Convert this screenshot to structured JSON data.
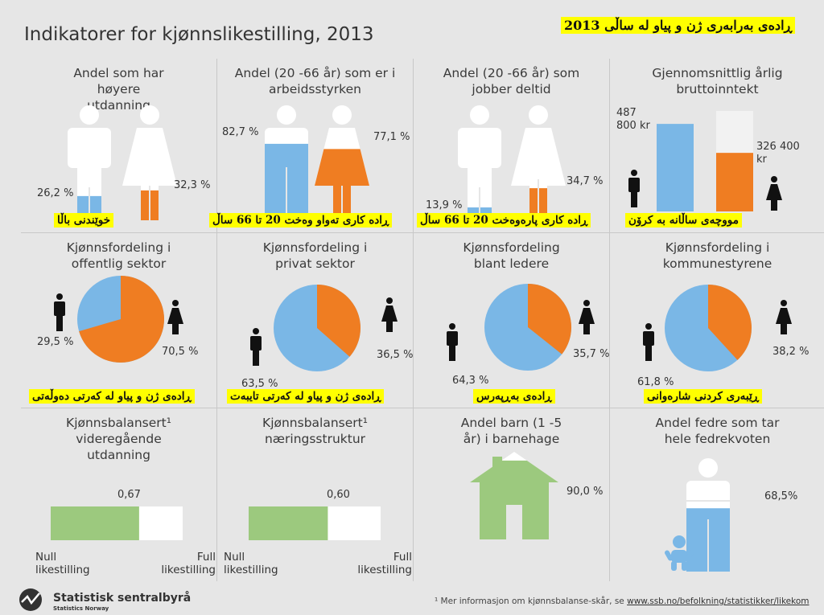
{
  "title": "Indikatorer for kjønnslikestilling, 2013",
  "banner": "ڕادەی بەرابەری ژن و پیاو لە ساڵی 2013",
  "colors": {
    "blue": "#7ab7e6",
    "orange": "#ef7d22",
    "green": "#9cc97e",
    "white": "#ffffff",
    "text": "#333333",
    "background": "#e6e6e6",
    "highlight": "#ffff00"
  },
  "chart_data": [
    {
      "type": "pictogram",
      "title": "Andel som har høyere utdanning",
      "translation": "خوێندنی باڵا",
      "series": [
        {
          "name": "menn",
          "value": 26.2,
          "label": "26,2 %"
        },
        {
          "name": "kvinner",
          "value": 32.3,
          "label": "32,3 %"
        }
      ]
    },
    {
      "type": "pictogram",
      "title": "Andel (20 -66 år) som er i arbeidsstyrken",
      "translation": "ڕادە کاری تەواو وەخت 20 تا 66 ساڵ",
      "series": [
        {
          "name": "menn",
          "value": 82.7,
          "label": "82,7 %"
        },
        {
          "name": "kvinner",
          "value": 77.1,
          "label": "77,1 %"
        }
      ]
    },
    {
      "type": "pictogram",
      "title": "Andel (20 -66 år) som jobber deltid",
      "translation": "ڕادە کاری پارەوەخت 20 تا 66 ساڵ",
      "series": [
        {
          "name": "menn",
          "value": 13.9,
          "label": "13,9 %"
        },
        {
          "name": "kvinner",
          "value": 34.7,
          "label": "34,7 %"
        }
      ]
    },
    {
      "type": "bar",
      "title": "Gjennomsnittlig årlig bruttoinntekt",
      "translation": "مووچەی ساڵانە بە کرۆن",
      "series": [
        {
          "name": "menn",
          "value": 487800,
          "label": "487 800 kr"
        },
        {
          "name": "kvinner",
          "value": 326400,
          "label": "326 400 kr"
        }
      ]
    },
    {
      "type": "pie",
      "title": "Kjønnsfordeling i offentlig sektor",
      "translation": "ڕادەی ژن و پیاو لە کەرتی دەوڵەتی",
      "series": [
        {
          "name": "menn",
          "value": 29.5,
          "label": "29,5 %"
        },
        {
          "name": "kvinner",
          "value": 70.5,
          "label": "70,5 %"
        }
      ]
    },
    {
      "type": "pie",
      "title": "Kjønnsfordeling i privat sektor",
      "translation": "ڕادەی ژن و پیاو لە کەرتی تایبەت",
      "series": [
        {
          "name": "menn",
          "value": 63.5,
          "label": "63,5 %"
        },
        {
          "name": "kvinner",
          "value": 36.5,
          "label": "36,5 %"
        }
      ]
    },
    {
      "type": "pie",
      "title": "Kjønnsfordeling blant ledere",
      "translation": "ڕادەی بەڕپەرس",
      "series": [
        {
          "name": "menn",
          "value": 64.3,
          "label": "64,3 %"
        },
        {
          "name": "kvinner",
          "value": 35.7,
          "label": "35,7 %"
        }
      ]
    },
    {
      "type": "pie",
      "title": "Kjønnsfordeling i kommunestyrene",
      "translation": "ڕێبەری کردنی شارەوانی",
      "series": [
        {
          "name": "menn",
          "value": 61.8,
          "label": "61,8 %"
        },
        {
          "name": "kvinner",
          "value": 38.2,
          "label": "38,2 %"
        }
      ]
    },
    {
      "type": "scale",
      "title": "Kjønnsbalansert¹ videregående utdanning",
      "value": 0.67,
      "label": "0,67",
      "min_label": "Null likestilling",
      "max_label": "Full likestilling"
    },
    {
      "type": "scale",
      "title": "Kjønnsbalansert¹ næringsstruktur",
      "value": 0.6,
      "label": "0,60",
      "min_label": "Null likestilling",
      "max_label": "Full likestilling"
    },
    {
      "type": "pictogram",
      "title": "Andel barn (1 -5 år) i barnehage",
      "value": 90.0,
      "label": "90,0 %"
    },
    {
      "type": "pictogram",
      "title": "Andel fedre som tar hele fedrekvoten",
      "value": 68.5,
      "label": "68,5%"
    }
  ],
  "footer": {
    "note": "¹ Mer informasjon om kjønnsbalanse-skår, se",
    "link": "www.ssb.no/befolkning/statistikker/likekom",
    "logo_name": "Statistisk sentralbyrå",
    "logo_sub": "Statistics Norway"
  }
}
